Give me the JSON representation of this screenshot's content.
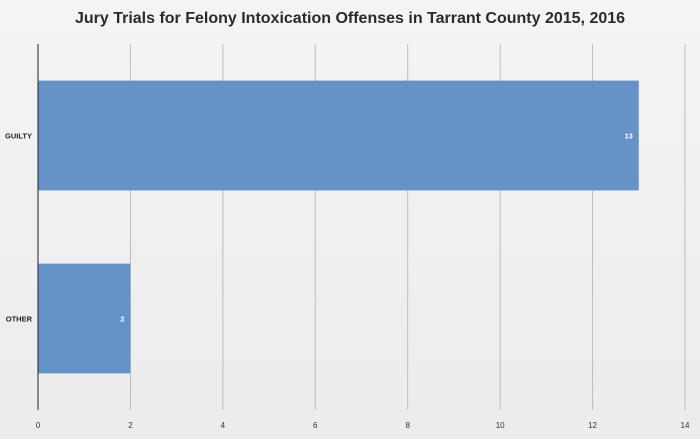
{
  "chart_data": {
    "type": "bar",
    "orientation": "horizontal",
    "title": "Jury Trials for Felony Intoxication Offenses in Tarrant County 2015, 2016",
    "categories": [
      "GUILTY",
      "OTHER"
    ],
    "values": [
      13,
      2
    ],
    "data_labels": [
      "13",
      "2"
    ],
    "xlim": [
      0,
      14
    ],
    "xticks": [
      0,
      2,
      4,
      6,
      8,
      10,
      12,
      14
    ],
    "xtick_labels": [
      "0",
      "2",
      "4",
      "6",
      "8",
      "10",
      "12",
      "14"
    ],
    "grid": true,
    "legend": "none",
    "bar_color": "#6593c8"
  }
}
